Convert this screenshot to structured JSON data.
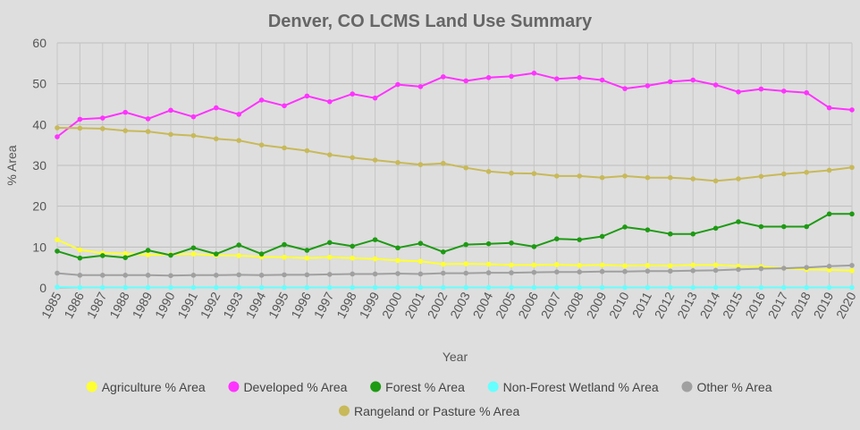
{
  "chart_data": {
    "type": "line",
    "title": "Denver, CO LCMS Land Use Summary",
    "xlabel": "Year",
    "ylabel": "% Area",
    "ylim": [
      0,
      60
    ],
    "yticks": [
      0,
      10,
      20,
      30,
      40,
      50,
      60
    ],
    "grid": true,
    "legend_position": "bottom",
    "x": [
      "1985",
      "1986",
      "1987",
      "1988",
      "1989",
      "1990",
      "1991",
      "1992",
      "1993",
      "1994",
      "1995",
      "1996",
      "1997",
      "1998",
      "1999",
      "2000",
      "2001",
      "2002",
      "2003",
      "2004",
      "2005",
      "2006",
      "2007",
      "2008",
      "2009",
      "2010",
      "2011",
      "2012",
      "2013",
      "2014",
      "2015",
      "2016",
      "2017",
      "2018",
      "2019",
      "2020"
    ],
    "series": [
      {
        "name": "Agriculture % Area",
        "color": "#ffff33",
        "values": [
          11.8,
          9.3,
          8.5,
          8.4,
          8.1,
          8.2,
          8.3,
          8.0,
          7.9,
          7.6,
          7.5,
          7.3,
          7.5,
          7.3,
          7.1,
          6.7,
          6.5,
          5.8,
          5.9,
          5.8,
          5.6,
          5.6,
          5.7,
          5.5,
          5.6,
          5.4,
          5.5,
          5.4,
          5.6,
          5.6,
          5.3,
          5.2,
          4.8,
          4.5,
          4.4,
          4.2
        ]
      },
      {
        "name": "Developed % Area",
        "color": "#ff33ff",
        "values": [
          37.0,
          41.3,
          41.6,
          43.0,
          41.4,
          43.5,
          41.9,
          44.1,
          42.5,
          46.0,
          44.6,
          47.0,
          45.6,
          47.5,
          46.5,
          49.8,
          49.3,
          51.7,
          50.7,
          51.5,
          51.8,
          52.6,
          51.2,
          51.5,
          50.9,
          48.8,
          49.5,
          50.5,
          50.9,
          49.7,
          48.0,
          48.7,
          48.2,
          47.8,
          44.1,
          43.6
        ]
      },
      {
        "name": "Forest % Area",
        "color": "#1e9a14",
        "values": [
          9.0,
          7.3,
          7.9,
          7.4,
          9.2,
          8.0,
          9.8,
          8.3,
          10.5,
          8.3,
          10.6,
          9.2,
          11.1,
          10.2,
          11.8,
          9.8,
          10.9,
          8.8,
          10.6,
          10.8,
          11.0,
          10.1,
          12.0,
          11.8,
          12.6,
          14.9,
          14.2,
          13.2,
          13.2,
          14.6,
          16.2,
          15.0,
          15.0,
          15.0,
          18.1,
          18.1
        ]
      },
      {
        "name": "Non-Forest Wetland % Area",
        "color": "#66ffff",
        "values": [
          0.2,
          0.1,
          0.1,
          0.1,
          0.1,
          0.1,
          0.1,
          0.1,
          0.1,
          0.1,
          0.1,
          0.1,
          0.1,
          0.1,
          0.1,
          0.1,
          0.1,
          0.1,
          0.1,
          0.1,
          0.1,
          0.1,
          0.1,
          0.1,
          0.1,
          0.1,
          0.1,
          0.1,
          0.1,
          0.1,
          0.1,
          0.1,
          0.1,
          0.1,
          0.1,
          0.1
        ]
      },
      {
        "name": "Other % Area",
        "color": "#a0a0a0",
        "values": [
          3.6,
          3.1,
          3.1,
          3.1,
          3.1,
          3.0,
          3.1,
          3.1,
          3.2,
          3.1,
          3.2,
          3.2,
          3.3,
          3.4,
          3.4,
          3.5,
          3.4,
          3.6,
          3.6,
          3.7,
          3.7,
          3.8,
          3.9,
          3.9,
          4.0,
          4.0,
          4.1,
          4.1,
          4.2,
          4.3,
          4.5,
          4.7,
          4.8,
          5.0,
          5.3,
          5.5
        ]
      },
      {
        "name": "Rangeland or Pasture % Area",
        "color": "#c8b95a",
        "values": [
          39.2,
          39.1,
          39.0,
          38.5,
          38.3,
          37.6,
          37.3,
          36.5,
          36.1,
          35.0,
          34.3,
          33.6,
          32.6,
          31.9,
          31.3,
          30.7,
          30.2,
          30.5,
          29.4,
          28.5,
          28.1,
          28.0,
          27.4,
          27.4,
          27.0,
          27.4,
          27.0,
          27.0,
          26.7,
          26.2,
          26.7,
          27.3,
          27.9,
          28.3,
          28.8,
          29.5
        ]
      }
    ]
  }
}
